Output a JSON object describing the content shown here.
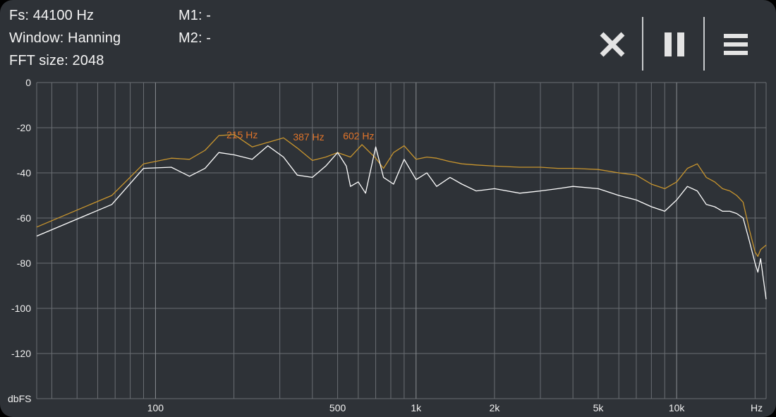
{
  "info": {
    "fs": "Fs: 44100 Hz",
    "window": "Window: Hanning",
    "fft": "FFT size: 2048",
    "m1": "M1: -",
    "m2": "M2: -"
  },
  "toolbar": {
    "close_icon": "close-icon",
    "pause_icon": "pause-icon",
    "menu_icon": "menu-icon"
  },
  "chart_data": {
    "type": "line",
    "xlabel": "Hz",
    "ylabel": "dbFS",
    "x_scale": "log",
    "xlim": [
      35,
      22050
    ],
    "ylim": [
      -140,
      0
    ],
    "yticks": [
      0,
      -20,
      -40,
      -60,
      -80,
      -100,
      -120
    ],
    "xtick_labels": [
      {
        "value": 100,
        "label": "100"
      },
      {
        "value": 500,
        "label": "500"
      },
      {
        "value": 1000,
        "label": "1k"
      },
      {
        "value": 2000,
        "label": "2k"
      },
      {
        "value": 5000,
        "label": "5k"
      },
      {
        "value": 10000,
        "label": "10k"
      }
    ],
    "grid": true,
    "colors": {
      "peak": "#c8952e",
      "current": "#ffffff",
      "peak_label": "#e0742a",
      "grid": "#6a6e73"
    },
    "peak_labels": [
      {
        "label": "215 Hz",
        "x": 215,
        "y": -26.5
      },
      {
        "label": "387 Hz",
        "x": 387,
        "y": -27.5
      },
      {
        "label": "602 Hz",
        "x": 602,
        "y": -27
      }
    ],
    "series": [
      {
        "role": "peak",
        "points": [
          [
            35,
            -64
          ],
          [
            68,
            -50
          ],
          [
            90,
            -36
          ],
          [
            115,
            -33.5
          ],
          [
            135,
            -34
          ],
          [
            155,
            -30
          ],
          [
            175,
            -23.5
          ],
          [
            200,
            -23
          ],
          [
            235,
            -28.5
          ],
          [
            270,
            -26.5
          ],
          [
            310,
            -24.5
          ],
          [
            350,
            -29
          ],
          [
            400,
            -34.5
          ],
          [
            450,
            -33
          ],
          [
            500,
            -31
          ],
          [
            560,
            -33
          ],
          [
            620,
            -27.5
          ],
          [
            700,
            -33.5
          ],
          [
            750,
            -38
          ],
          [
            820,
            -31
          ],
          [
            900,
            -28
          ],
          [
            1000,
            -34
          ],
          [
            1100,
            -33
          ],
          [
            1200,
            -33.5
          ],
          [
            1350,
            -35
          ],
          [
            1500,
            -36
          ],
          [
            1700,
            -36.5
          ],
          [
            2000,
            -37
          ],
          [
            2500,
            -37.5
          ],
          [
            3000,
            -37.5
          ],
          [
            3500,
            -38
          ],
          [
            4000,
            -38
          ],
          [
            5000,
            -38.5
          ],
          [
            6000,
            -40
          ],
          [
            7000,
            -41
          ],
          [
            8000,
            -45
          ],
          [
            9000,
            -47
          ],
          [
            10000,
            -44
          ],
          [
            11000,
            -38
          ],
          [
            12000,
            -36
          ],
          [
            13000,
            -42
          ],
          [
            14000,
            -44
          ],
          [
            15000,
            -47
          ],
          [
            16000,
            -48
          ],
          [
            17000,
            -50
          ],
          [
            18000,
            -53
          ],
          [
            19000,
            -65
          ],
          [
            20000,
            -75
          ],
          [
            20500,
            -77
          ],
          [
            21000,
            -74
          ],
          [
            22050,
            -72
          ]
        ]
      },
      {
        "role": "current",
        "points": [
          [
            35,
            -68
          ],
          [
            68,
            -54
          ],
          [
            90,
            -38
          ],
          [
            115,
            -37.5
          ],
          [
            135,
            -41.5
          ],
          [
            155,
            -38
          ],
          [
            175,
            -31
          ],
          [
            200,
            -32
          ],
          [
            235,
            -34
          ],
          [
            270,
            -28
          ],
          [
            310,
            -33
          ],
          [
            350,
            -41
          ],
          [
            400,
            -42
          ],
          [
            450,
            -37
          ],
          [
            500,
            -31
          ],
          [
            540,
            -37
          ],
          [
            560,
            -46
          ],
          [
            600,
            -44
          ],
          [
            640,
            -49
          ],
          [
            700,
            -28.5
          ],
          [
            750,
            -42
          ],
          [
            820,
            -45
          ],
          [
            900,
            -34
          ],
          [
            1000,
            -43
          ],
          [
            1100,
            -40
          ],
          [
            1200,
            -46
          ],
          [
            1350,
            -42
          ],
          [
            1500,
            -45
          ],
          [
            1700,
            -48
          ],
          [
            2000,
            -47
          ],
          [
            2500,
            -49
          ],
          [
            3000,
            -48
          ],
          [
            3500,
            -47
          ],
          [
            4000,
            -46
          ],
          [
            5000,
            -47
          ],
          [
            6000,
            -50
          ],
          [
            7000,
            -52
          ],
          [
            8000,
            -55
          ],
          [
            9000,
            -57
          ],
          [
            10000,
            -52
          ],
          [
            11000,
            -46
          ],
          [
            12000,
            -48
          ],
          [
            13000,
            -54
          ],
          [
            14000,
            -55
          ],
          [
            15000,
            -57
          ],
          [
            16000,
            -57
          ],
          [
            17000,
            -58
          ],
          [
            18000,
            -60
          ],
          [
            19000,
            -70
          ],
          [
            20000,
            -80
          ],
          [
            20500,
            -84
          ],
          [
            21000,
            -78
          ],
          [
            22050,
            -96
          ]
        ]
      }
    ]
  }
}
